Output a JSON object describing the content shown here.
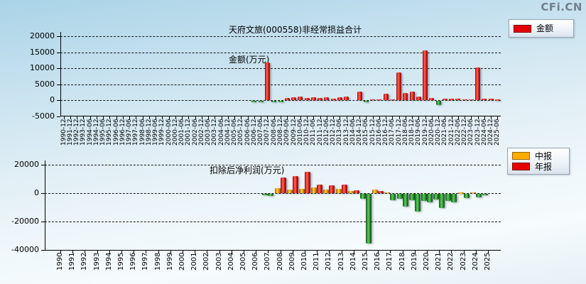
{
  "watermark": "CFi.CN",
  "chart_data": [
    {
      "type": "bar",
      "title": "天府文旅(000558)非经常损益合计",
      "title_line2": "金额(万元)",
      "ylabel": "金额(万元)",
      "ylim": [
        -5000,
        21500
      ],
      "yticks": [
        20000,
        15000,
        10000,
        5000,
        0,
        -5000
      ],
      "grid": "horizontal-dashed",
      "legend_position": "top-right",
      "legend": [
        {
          "label": "金额",
          "color": "#e60000"
        }
      ],
      "categories": [
        "1990-12",
        "1991-12",
        "1992-12",
        "1993-12",
        "1994-06",
        "1994-12",
        "1995-06",
        "1995-12",
        "1996-06",
        "1996-12",
        "1997-06",
        "1997-12",
        "1998-06",
        "1998-12",
        "1999-06",
        "1999-12",
        "2000-06",
        "2000-12",
        "2001-06",
        "2001-12",
        "2002-06",
        "2002-12",
        "2003-06",
        "2003-12",
        "2004-06",
        "2004-12",
        "2005-06",
        "2005-12",
        "2006-06",
        "2006-12",
        "2007-06",
        "2007-12",
        "2008-06",
        "2008-12",
        "2009-06",
        "2009-12",
        "2010-06",
        "2010-12",
        "2011-06",
        "2011-12",
        "2012-06",
        "2012-12",
        "2013-06",
        "2013-12",
        "2014-06",
        "2014-12",
        "2015-06",
        "2015-12",
        "2016-06",
        "2016-12",
        "2017-06",
        "2017-12",
        "2018-06",
        "2018-12",
        "2019-06",
        "2019-12",
        "2020-06",
        "2020-12",
        "2021-06",
        "2021-12",
        "2022-06",
        "2022-12",
        "2023-06",
        "2023-12",
        "2024-06",
        "2024-12",
        "2025-06"
      ],
      "series": [
        {
          "name": "金额",
          "positive_color": "#e60000",
          "negative_color": "#2e9e2e",
          "values": [
            null,
            null,
            null,
            null,
            null,
            null,
            null,
            null,
            null,
            null,
            null,
            null,
            null,
            null,
            null,
            null,
            null,
            null,
            null,
            null,
            null,
            null,
            null,
            null,
            null,
            null,
            null,
            null,
            null,
            -200,
            -250,
            11700,
            -400,
            -350,
            700,
            800,
            1200,
            700,
            800,
            600,
            800,
            500,
            1000,
            1050,
            null,
            2700,
            -500,
            250,
            250,
            1900,
            300,
            8600,
            2300,
            2750,
            1200,
            15500,
            700,
            -1350,
            500,
            400,
            500,
            300,
            300,
            10300,
            400,
            350,
            200
          ]
        }
      ]
    },
    {
      "type": "bar",
      "title": "扣除后净利润(万元)",
      "ylabel": "扣除后净利润(万元)",
      "ylim": [
        -40000,
        23000
      ],
      "yticks": [
        20000,
        0,
        -20000,
        -40000
      ],
      "grid": "horizontal-dashed",
      "legend_position": "top-right",
      "legend": [
        {
          "label": "中报",
          "color": "#ffac00"
        },
        {
          "label": "年报",
          "color": "#e60000"
        }
      ],
      "categories": [
        "1990",
        "1991",
        "1992",
        "1993",
        "1994",
        "1995",
        "1996",
        "1997",
        "1998",
        "1999",
        "2000",
        "2001",
        "2002",
        "2003",
        "2004",
        "2005",
        "2006",
        "2007",
        "2008",
        "2009",
        "2010",
        "2011",
        "2012",
        "2013",
        "2014",
        "2015",
        "2016",
        "2017",
        "2018",
        "2019",
        "2020",
        "2021",
        "2022",
        "2023",
        "2024",
        "2025"
      ],
      "series": [
        {
          "name": "中报",
          "positive_color": "#ffac00",
          "negative_color": "#2e9e2e",
          "values": [
            null,
            null,
            null,
            null,
            null,
            null,
            null,
            null,
            null,
            null,
            null,
            null,
            null,
            null,
            null,
            null,
            null,
            -800,
            3500,
            2400,
            3200,
            3900,
            2400,
            2900,
            1600,
            -3600,
            2400,
            600,
            -3500,
            -4300,
            -5000,
            -4000,
            -4800,
            500,
            600,
            -800
          ]
        },
        {
          "name": "年报",
          "positive_color": "#e60000",
          "negative_color": "#2e9e2e",
          "values": [
            null,
            null,
            null,
            null,
            null,
            null,
            null,
            null,
            null,
            null,
            null,
            null,
            null,
            null,
            null,
            null,
            null,
            -1300,
            11000,
            11900,
            15100,
            6000,
            5600,
            6100,
            1800,
            -35000,
            1600,
            -4600,
            -9000,
            -12500,
            -5900,
            -9800,
            -6100,
            -3200,
            -2400,
            null
          ]
        }
      ]
    }
  ]
}
